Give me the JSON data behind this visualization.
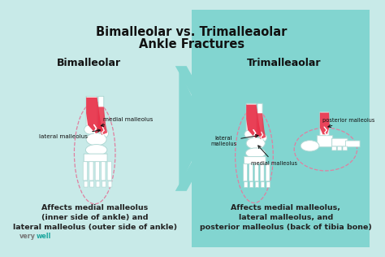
{
  "title_line1": "Bimalleolar vs. Trimalleaolar",
  "title_line2": "Ankle Fractures",
  "left_heading": "Bimalleolar",
  "right_heading": "Trimalleaolar",
  "left_caption_line1": "Affects medial malleolus",
  "left_caption_line2": "(inner side of ankle) and",
  "left_caption_line3": "lateral malleolus (outer side of ankle)",
  "right_caption_line1": "Affects medial malleolus,",
  "right_caption_line2": "lateral malleolus, and",
  "right_caption_line3": "posterior malleolus (back of tibia bone)",
  "bg_light": "#c8eae8",
  "bg_dark": "#82d5d0",
  "title_color": "#111111",
  "caption_color": "#222222",
  "watermark_gray": "#777777",
  "watermark_teal": "#20a8a0",
  "bone_color": "#ffffff",
  "bone_edge": "#b0d8d4",
  "fracture_red": "#e83048",
  "dashed_pink": "#e080a0",
  "arrow_color": "#111111",
  "label_color": "#111111"
}
